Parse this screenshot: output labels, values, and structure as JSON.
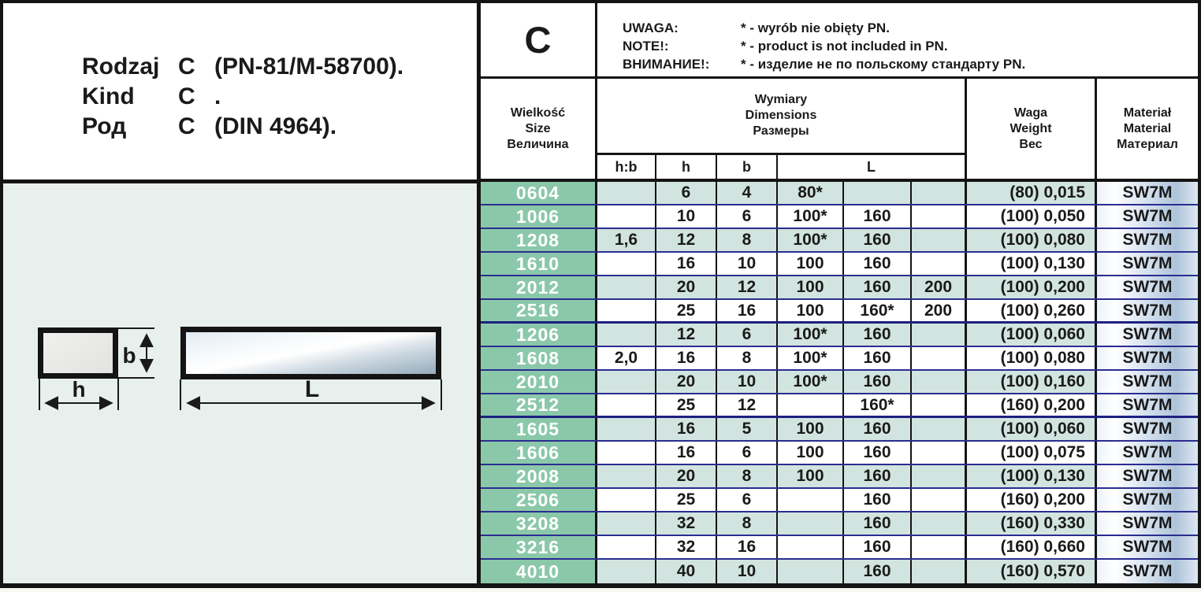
{
  "title_block": {
    "rows": [
      {
        "label": "Rodzaj",
        "letter": "C",
        "rest": "(PN-81/M-58700)."
      },
      {
        "label": "Kind",
        "letter": "C",
        "rest": "."
      },
      {
        "label": "Род",
        "letter": "C",
        "rest": "(DIN 4964)."
      }
    ]
  },
  "type_letter": "C",
  "notes": [
    {
      "label": "UWAGA:",
      "text": "* - wyrób nie obięty PN."
    },
    {
      "label": "NOTE!:",
      "text": "* - product is not included in PN."
    },
    {
      "label": "ВНИМАНИЕ!:",
      "text": "* - изделие не по польскому стандарту PN."
    }
  ],
  "table": {
    "size_header": [
      "Wielkość",
      "Size",
      "Величина"
    ],
    "dims_header": [
      "Wymiary",
      "Dimensions",
      "Размеры"
    ],
    "sub_headers": [
      "h:b",
      "h",
      "b",
      "L"
    ],
    "weight_header": [
      "Waga",
      "Weight",
      "Вес"
    ],
    "material_header": [
      "Materiał",
      "Material",
      "Материал"
    ],
    "rows": [
      {
        "size": "0604",
        "hb": "",
        "h": "6",
        "b": "4",
        "l1": "80*",
        "l2": "",
        "l3": "",
        "weight": "(80) 0,015",
        "material": "SW7M",
        "group_end": false
      },
      {
        "size": "1006",
        "hb": "",
        "h": "10",
        "b": "6",
        "l1": "100*",
        "l2": "160",
        "l3": "",
        "weight": "(100) 0,050",
        "material": "SW7M",
        "group_end": false
      },
      {
        "size": "1208",
        "hb": "1,6",
        "h": "12",
        "b": "8",
        "l1": "100*",
        "l2": "160",
        "l3": "",
        "weight": "(100) 0,080",
        "material": "SW7M",
        "group_end": false
      },
      {
        "size": "1610",
        "hb": "",
        "h": "16",
        "b": "10",
        "l1": "100",
        "l2": "160",
        "l3": "",
        "weight": "(100) 0,130",
        "material": "SW7M",
        "group_end": false
      },
      {
        "size": "2012",
        "hb": "",
        "h": "20",
        "b": "12",
        "l1": "100",
        "l2": "160",
        "l3": "200",
        "weight": "(100) 0,200",
        "material": "SW7M",
        "group_end": false
      },
      {
        "size": "2516",
        "hb": "",
        "h": "25",
        "b": "16",
        "l1": "100",
        "l2": "160*",
        "l3": "200",
        "weight": "(100) 0,260",
        "material": "SW7M",
        "group_end": true
      },
      {
        "size": "1206",
        "hb": "",
        "h": "12",
        "b": "6",
        "l1": "100*",
        "l2": "160",
        "l3": "",
        "weight": "(100) 0,060",
        "material": "SW7M",
        "group_end": false
      },
      {
        "size": "1608",
        "hb": "2,0",
        "h": "16",
        "b": "8",
        "l1": "100*",
        "l2": "160",
        "l3": "",
        "weight": "(100) 0,080",
        "material": "SW7M",
        "group_end": false
      },
      {
        "size": "2010",
        "hb": "",
        "h": "20",
        "b": "10",
        "l1": "100*",
        "l2": "160",
        "l3": "",
        "weight": "(100) 0,160",
        "material": "SW7M",
        "group_end": false
      },
      {
        "size": "2512",
        "hb": "",
        "h": "25",
        "b": "12",
        "l1": "",
        "l2": "160*",
        "l3": "",
        "weight": "(160) 0,200",
        "material": "SW7M",
        "group_end": true
      },
      {
        "size": "1605",
        "hb": "",
        "h": "16",
        "b": "5",
        "l1": "100",
        "l2": "160",
        "l3": "",
        "weight": "(100) 0,060",
        "material": "SW7M",
        "group_end": false
      },
      {
        "size": "1606",
        "hb": "",
        "h": "16",
        "b": "6",
        "l1": "100",
        "l2": "160",
        "l3": "",
        "weight": "(100) 0,075",
        "material": "SW7M",
        "group_end": false
      },
      {
        "size": "2008",
        "hb": "",
        "h": "20",
        "b": "8",
        "l1": "100",
        "l2": "160",
        "l3": "",
        "weight": "(100) 0,130",
        "material": "SW7M",
        "group_end": false
      },
      {
        "size": "2506",
        "hb": "",
        "h": "25",
        "b": "6",
        "l1": "",
        "l2": "160",
        "l3": "",
        "weight": "(160) 0,200",
        "material": "SW7M",
        "group_end": false
      },
      {
        "size": "3208",
        "hb": "",
        "h": "32",
        "b": "8",
        "l1": "",
        "l2": "160",
        "l3": "",
        "weight": "(160) 0,330",
        "material": "SW7M",
        "group_end": false
      },
      {
        "size": "3216",
        "hb": "",
        "h": "32",
        "b": "16",
        "l1": "",
        "l2": "160",
        "l3": "",
        "weight": "(160) 0,660",
        "material": "SW7M",
        "group_end": false
      },
      {
        "size": "4010",
        "hb": "",
        "h": "40",
        "b": "10",
        "l1": "",
        "l2": "160",
        "l3": "",
        "weight": "(160) 0,570",
        "material": "SW7M",
        "group_end": false
      }
    ]
  },
  "diagram": {
    "b": "b",
    "h": "h",
    "L": "L"
  },
  "colors": {
    "accent_green": "#8bc8aa",
    "row_teal": "#d2e4df",
    "weight_gray": "#e4e1dd",
    "separator_navy": "#2a2d90",
    "panel_bg": "#e8f0ed",
    "border_black": "#141414"
  }
}
